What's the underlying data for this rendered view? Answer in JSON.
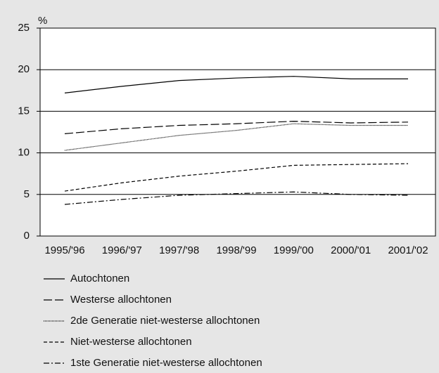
{
  "chart_data": {
    "type": "line",
    "y_label": "%",
    "categories": [
      "1995/'96",
      "1996/'97",
      "1997/'98",
      "1998/'99",
      "1999/'00",
      "2000/'01",
      "2001/'02"
    ],
    "ylim": [
      0,
      25
    ],
    "yticks": [
      0,
      5,
      10,
      15,
      20,
      25
    ],
    "grid": true,
    "series": [
      {
        "name": "Autochtonen",
        "color": "#000000",
        "dash": "none",
        "values": [
          17.2,
          18.0,
          18.7,
          19.0,
          19.2,
          18.9,
          18.9
        ]
      },
      {
        "name": "Westerse allochtonen",
        "color": "#000000",
        "dash": "12 4",
        "values": [
          12.3,
          12.9,
          13.3,
          13.5,
          13.8,
          13.6,
          13.7
        ]
      },
      {
        "name": "2de Generatie niet-westerse allochtonen",
        "color": "#000000",
        "dash": "1 1",
        "values": [
          10.3,
          11.2,
          12.1,
          12.7,
          13.5,
          13.3,
          13.3
        ]
      },
      {
        "name": "Niet-westerse allochtonen",
        "color": "#000000",
        "dash": "5 3",
        "values": [
          5.4,
          6.4,
          7.2,
          7.8,
          8.5,
          8.6,
          8.7
        ]
      },
      {
        "name": "1ste Generatie niet-westerse allochtonen",
        "color": "#000000",
        "dash": "8 3 2 3",
        "values": [
          3.8,
          4.4,
          4.9,
          5.1,
          5.3,
          5.0,
          4.9
        ]
      }
    ]
  }
}
